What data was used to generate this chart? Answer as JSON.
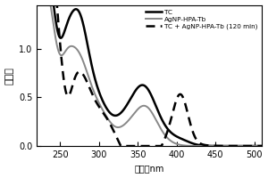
{
  "title": "",
  "xlabel": "波长／nm",
  "ylabel": "吸光度",
  "xlim": [
    220,
    510
  ],
  "ylim": [
    0.0,
    1.45
  ],
  "yticks": [
    0.0,
    0.5,
    1.0
  ],
  "xticks": [
    250,
    300,
    350,
    400,
    450,
    500
  ],
  "legend_TC": {
    "color": "#000000",
    "lw": 1.8,
    "ls": "solid"
  },
  "legend_AgNP": {
    "color": "#888888",
    "lw": 1.4,
    "ls": "solid"
  },
  "legend_TC_AgNP": {
    "color": "#000000",
    "lw": 1.8,
    "ls": "dashed"
  },
  "background_color": "#ffffff"
}
